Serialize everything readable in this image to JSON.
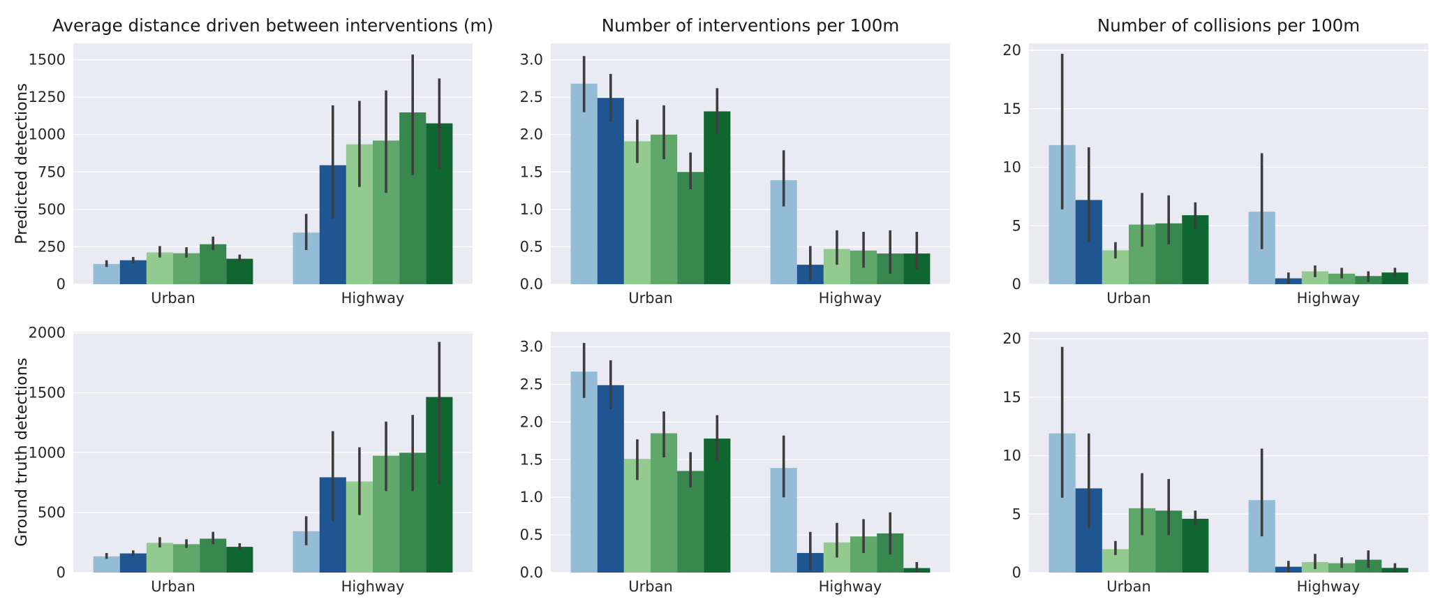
{
  "chart_data": [
    {
      "type": "bar",
      "title": "Average distance driven between interventions (m)",
      "ylabel": "Predicted detections",
      "categories": [
        "Urban",
        "Highway"
      ],
      "ylim": [
        0,
        1610
      ],
      "yticks": [
        0,
        250,
        500,
        750,
        1000,
        1250,
        1500
      ],
      "colors": [
        "#94bcd6",
        "#1f5590",
        "#93ca8f",
        "#60a86a",
        "#37874f",
        "#0f6630"
      ],
      "values": [
        [
          135,
          160,
          212,
          207,
          267,
          170
        ],
        [
          345,
          795,
          935,
          960,
          1148,
          1075
        ]
      ],
      "err_low": [
        [
          115,
          140,
          178,
          178,
          228,
          150
        ],
        [
          228,
          440,
          650,
          610,
          730,
          770
        ]
      ],
      "err_high": [
        [
          160,
          182,
          255,
          247,
          318,
          198
        ],
        [
          470,
          1195,
          1225,
          1295,
          1535,
          1375
        ]
      ]
    },
    {
      "type": "bar",
      "title": "Number of interventions per 100m",
      "ylabel": "",
      "categories": [
        "Urban",
        "Highway"
      ],
      "ylim": [
        0,
        3.22
      ],
      "yticks": [
        0.0,
        0.5,
        1.0,
        1.5,
        2.0,
        2.5,
        3.0
      ],
      "colors": [
        "#94bcd6",
        "#1f5590",
        "#93ca8f",
        "#60a86a",
        "#37874f",
        "#0f6630"
      ],
      "values": [
        [
          2.68,
          2.49,
          1.91,
          2.0,
          1.5,
          2.31
        ],
        [
          1.39,
          0.26,
          0.47,
          0.45,
          0.41,
          0.41
        ]
      ],
      "err_low": [
        [
          2.3,
          2.17,
          1.62,
          1.67,
          1.27,
          2.01
        ],
        [
          1.04,
          0.05,
          0.26,
          0.22,
          0.14,
          0.2
        ]
      ],
      "err_high": [
        [
          3.05,
          2.81,
          2.2,
          2.39,
          1.76,
          2.62
        ],
        [
          1.79,
          0.51,
          0.72,
          0.7,
          0.72,
          0.7
        ]
      ]
    },
    {
      "type": "bar",
      "title": "Number of collisions per 100m",
      "ylabel": "",
      "categories": [
        "Urban",
        "Highway"
      ],
      "ylim": [
        0,
        20.6
      ],
      "yticks": [
        0,
        5,
        10,
        15,
        20
      ],
      "colors": [
        "#94bcd6",
        "#1f5590",
        "#93ca8f",
        "#60a86a",
        "#37874f",
        "#0f6630"
      ],
      "values": [
        [
          11.9,
          7.2,
          2.9,
          5.1,
          5.2,
          5.9
        ],
        [
          6.2,
          0.5,
          1.1,
          0.9,
          0.7,
          1.0
        ]
      ],
      "err_low": [
        [
          6.4,
          3.6,
          2.2,
          3.2,
          3.4,
          4.7
        ],
        [
          3.0,
          0.0,
          0.6,
          0.5,
          0.2,
          0.6
        ]
      ],
      "err_high": [
        [
          19.7,
          11.7,
          3.6,
          7.8,
          7.6,
          7.0
        ],
        [
          11.2,
          1.0,
          1.6,
          1.4,
          1.1,
          1.4
        ]
      ]
    },
    {
      "type": "bar",
      "title": "",
      "ylabel": "Ground truth detections",
      "categories": [
        "Urban",
        "Highway"
      ],
      "ylim": [
        0,
        2010
      ],
      "yticks": [
        0,
        500,
        1000,
        1500,
        2000
      ],
      "colors": [
        "#94bcd6",
        "#1f5590",
        "#93ca8f",
        "#60a86a",
        "#37874f",
        "#0f6630"
      ],
      "values": [
        [
          135,
          160,
          248,
          237,
          283,
          215
        ],
        [
          345,
          795,
          760,
          975,
          1000,
          1465
        ]
      ],
      "err_low": [
        [
          115,
          138,
          210,
          205,
          238,
          190
        ],
        [
          228,
          430,
          480,
          680,
          680,
          740
        ]
      ],
      "err_high": [
        [
          163,
          185,
          295,
          278,
          340,
          245
        ],
        [
          470,
          1180,
          1045,
          1260,
          1315,
          1925
        ]
      ]
    },
    {
      "type": "bar",
      "title": "",
      "ylabel": "",
      "categories": [
        "Urban",
        "Highway"
      ],
      "ylim": [
        0,
        3.2
      ],
      "yticks": [
        0.0,
        0.5,
        1.0,
        1.5,
        2.0,
        2.5,
        3.0
      ],
      "colors": [
        "#94bcd6",
        "#1f5590",
        "#93ca8f",
        "#60a86a",
        "#37874f",
        "#0f6630"
      ],
      "values": [
        [
          2.67,
          2.49,
          1.51,
          1.85,
          1.35,
          1.78
        ],
        [
          1.39,
          0.26,
          0.4,
          0.48,
          0.52,
          0.06
        ]
      ],
      "err_low": [
        [
          2.32,
          2.17,
          1.23,
          1.53,
          1.13,
          1.48
        ],
        [
          1.0,
          0.03,
          0.2,
          0.26,
          0.24,
          0.0
        ]
      ],
      "err_high": [
        [
          3.05,
          2.82,
          1.77,
          2.14,
          1.6,
          2.09
        ],
        [
          1.82,
          0.54,
          0.66,
          0.71,
          0.8,
          0.14
        ]
      ]
    },
    {
      "type": "bar",
      "title": "",
      "ylabel": "",
      "categories": [
        "Urban",
        "Highway"
      ],
      "ylim": [
        0,
        20.6
      ],
      "yticks": [
        0,
        5,
        10,
        15,
        20
      ],
      "colors": [
        "#94bcd6",
        "#1f5590",
        "#93ca8f",
        "#60a86a",
        "#37874f",
        "#0f6630"
      ],
      "values": [
        [
          11.9,
          7.2,
          2.0,
          5.5,
          5.3,
          4.6
        ],
        [
          6.2,
          0.5,
          0.9,
          0.8,
          1.1,
          0.4
        ]
      ],
      "err_low": [
        [
          6.4,
          3.8,
          1.5,
          3.2,
          3.2,
          4.0
        ],
        [
          3.1,
          0.0,
          0.3,
          0.4,
          0.4,
          0.0
        ]
      ],
      "err_high": [
        [
          19.3,
          11.9,
          2.7,
          8.5,
          8.0,
          5.3
        ],
        [
          10.6,
          1.0,
          1.6,
          1.3,
          1.9,
          0.8
        ]
      ]
    }
  ]
}
